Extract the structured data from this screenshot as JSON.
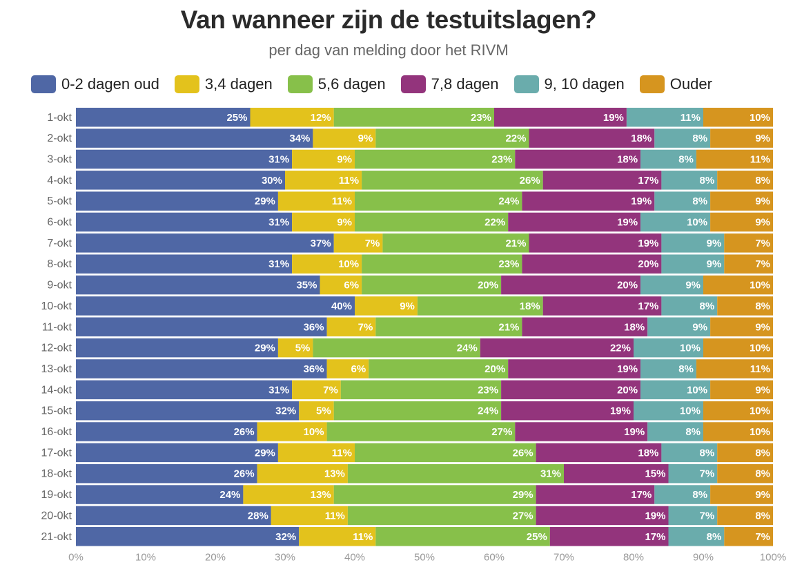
{
  "chart_data": {
    "type": "bar",
    "orientation": "horizontal",
    "stacked": true,
    "title": "Van wanneer zijn de testuitslagen?",
    "subtitle": "per dag van melding door het RIVM",
    "xlabel": "",
    "ylabel": "",
    "xlim": [
      0,
      100
    ],
    "x_ticks": [
      "0%",
      "10%",
      "20%",
      "30%",
      "40%",
      "50%",
      "60%",
      "70%",
      "80%",
      "90%",
      "100%"
    ],
    "legend_position": "top",
    "categories": [
      "1-okt",
      "2-okt",
      "3-okt",
      "4-okt",
      "5-okt",
      "6-okt",
      "7-okt",
      "8-okt",
      "9-okt",
      "10-okt",
      "11-okt",
      "12-okt",
      "13-okt",
      "14-okt",
      "15-okt",
      "16-okt",
      "17-okt",
      "18-okt",
      "19-okt",
      "20-0kt",
      "21-okt"
    ],
    "series": [
      {
        "name": "0-2 dagen oud",
        "color": "#4f67a5",
        "values": [
          25,
          34,
          31,
          30,
          29,
          31,
          37,
          31,
          35,
          40,
          36,
          29,
          36,
          31,
          32,
          26,
          29,
          26,
          24,
          28,
          32
        ]
      },
      {
        "name": "3,4 dagen",
        "color": "#e3c21c",
        "values": [
          12,
          9,
          9,
          11,
          11,
          9,
          7,
          10,
          6,
          9,
          7,
          5,
          6,
          7,
          5,
          10,
          11,
          13,
          13,
          11,
          11
        ]
      },
      {
        "name": "5,6 dagen",
        "color": "#87c04a",
        "values": [
          23,
          22,
          23,
          26,
          24,
          22,
          21,
          23,
          20,
          18,
          21,
          24,
          20,
          23,
          24,
          27,
          26,
          31,
          29,
          27,
          25
        ]
      },
      {
        "name": "7,8 dagen",
        "color": "#93347c",
        "values": [
          19,
          18,
          18,
          17,
          19,
          19,
          19,
          20,
          20,
          17,
          18,
          22,
          19,
          20,
          19,
          19,
          18,
          15,
          17,
          19,
          17
        ]
      },
      {
        "name": "9, 10 dagen",
        "color": "#6aacac",
        "values": [
          11,
          8,
          8,
          8,
          8,
          10,
          9,
          9,
          9,
          8,
          9,
          10,
          8,
          10,
          10,
          8,
          8,
          7,
          8,
          7,
          8
        ]
      },
      {
        "name": "Ouder",
        "color": "#d6951f",
        "values": [
          10,
          9,
          11,
          8,
          9,
          9,
          7,
          7,
          10,
          8,
          9,
          10,
          11,
          9,
          10,
          10,
          8,
          8,
          9,
          8,
          7
        ]
      }
    ]
  }
}
